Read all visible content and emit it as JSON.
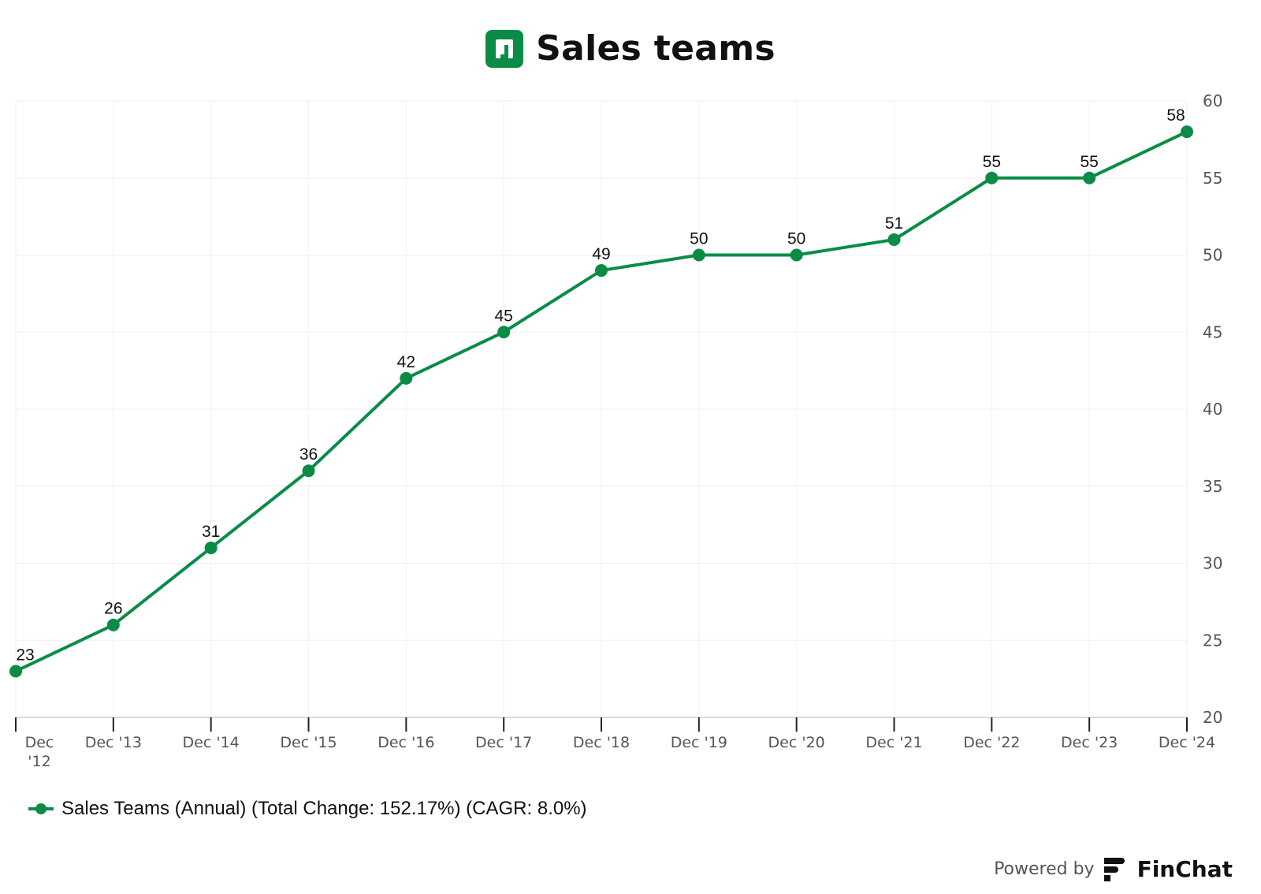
{
  "header": {
    "title": "Sales teams",
    "logo_icon": "company-logo-icon"
  },
  "legend": {
    "label": "Sales Teams (Annual) (Total Change: 152.17%) (CAGR: 8.0%)",
    "color": "#0a8c46"
  },
  "footer": {
    "powered_by": "Powered by",
    "brand": "FinChat"
  },
  "chart_data": {
    "type": "line",
    "title": "Sales teams",
    "xlabel": "",
    "ylabel": "",
    "categories": [
      "Dec '12",
      "Dec '13",
      "Dec '14",
      "Dec '15",
      "Dec '16",
      "Dec '17",
      "Dec '18",
      "Dec '19",
      "Dec '20",
      "Dec '21",
      "Dec '22",
      "Dec '23",
      "Dec '24"
    ],
    "series": [
      {
        "name": "Sales Teams (Annual) (Total Change: 152.17%) (CAGR: 8.0%)",
        "values": [
          23,
          26,
          31,
          36,
          42,
          45,
          49,
          50,
          50,
          51,
          55,
          55,
          58
        ],
        "color": "#0a8c46"
      }
    ],
    "ylim": [
      20,
      60
    ],
    "yticks": [
      20,
      25,
      30,
      35,
      40,
      45,
      50,
      55,
      60
    ],
    "y_axis_side": "right",
    "grid": true,
    "legend_position": "bottom-left",
    "data_labels": true
  }
}
